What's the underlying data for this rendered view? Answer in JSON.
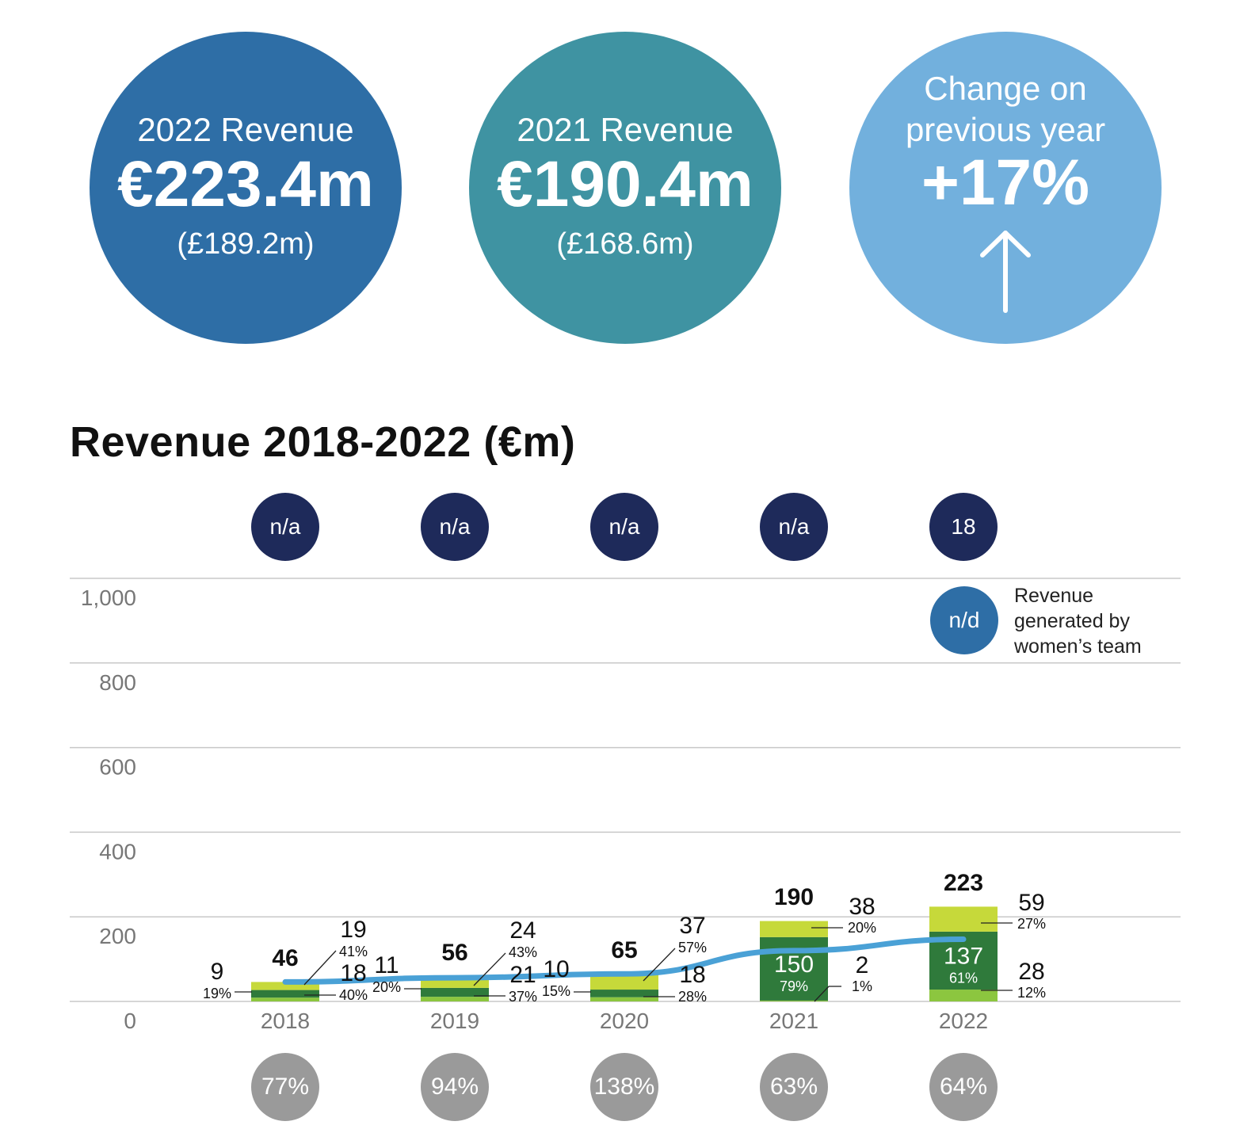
{
  "kpis": [
    {
      "label": "2022 Revenue",
      "value": "€223.4m",
      "sub": "(£189.2m)",
      "color": "#2e6ea6"
    },
    {
      "label": "2021 Revenue",
      "value": "€190.4m",
      "sub": "(£168.6m)",
      "color": "#3f93a2"
    },
    {
      "label_line1": "Change on",
      "label_line2": "previous year",
      "value": "+17%",
      "icon": "arrow-up-icon",
      "color": "#72b0dd"
    }
  ],
  "title": "Revenue 2018-2022 (€m)",
  "top_badges": [
    "n/a",
    "n/a",
    "n/a",
    "n/a",
    "18"
  ],
  "bottom_badges": [
    "77%",
    "94%",
    "138%",
    "63%",
    "64%"
  ],
  "legend": {
    "badge": "n/d",
    "text_line1": "Revenue",
    "text_line2": "generated by",
    "text_line3": "women’s team"
  },
  "colors": {
    "dark_green": "#2f7a3b",
    "mid_green": "#8cc63f",
    "light_green": "#c6d93a",
    "line": "#4aa1d6"
  },
  "chart_data": {
    "type": "bar",
    "stacked": true,
    "title": "Revenue 2018-2022 (€m)",
    "categories": [
      "2018",
      "2019",
      "2020",
      "2021",
      "2022"
    ],
    "ylim": [
      0,
      1000
    ],
    "yticks": [
      0,
      200,
      400,
      600,
      800,
      1000
    ],
    "ytick_labels": [
      "0",
      "200",
      "400",
      "600",
      "800",
      "1,000"
    ],
    "grid": true,
    "totals": [
      46,
      56,
      65,
      190,
      223
    ],
    "series": [
      {
        "values": [
          9,
          11,
          10,
          2,
          28
        ],
        "value_labels": [
          "9",
          "11",
          "10",
          "2",
          "28"
        ],
        "pct_labels": [
          "19%",
          "20%",
          "15%",
          "1%",
          "12%"
        ]
      },
      {
        "values": [
          18,
          21,
          18,
          150,
          137
        ],
        "value_labels": [
          "18",
          "21",
          "18",
          "150",
          "137"
        ],
        "pct_labels": [
          "40%",
          "37%",
          "28%",
          "79%",
          "61%"
        ]
      },
      {
        "values": [
          19,
          24,
          37,
          38,
          59
        ],
        "value_labels": [
          "19",
          "24",
          "37",
          "38",
          "59"
        ],
        "pct_labels": [
          "41%",
          "43%",
          "57%",
          "20%",
          "27%"
        ]
      }
    ],
    "line": {
      "values": [
        46,
        56,
        65,
        120,
        147
      ]
    }
  }
}
